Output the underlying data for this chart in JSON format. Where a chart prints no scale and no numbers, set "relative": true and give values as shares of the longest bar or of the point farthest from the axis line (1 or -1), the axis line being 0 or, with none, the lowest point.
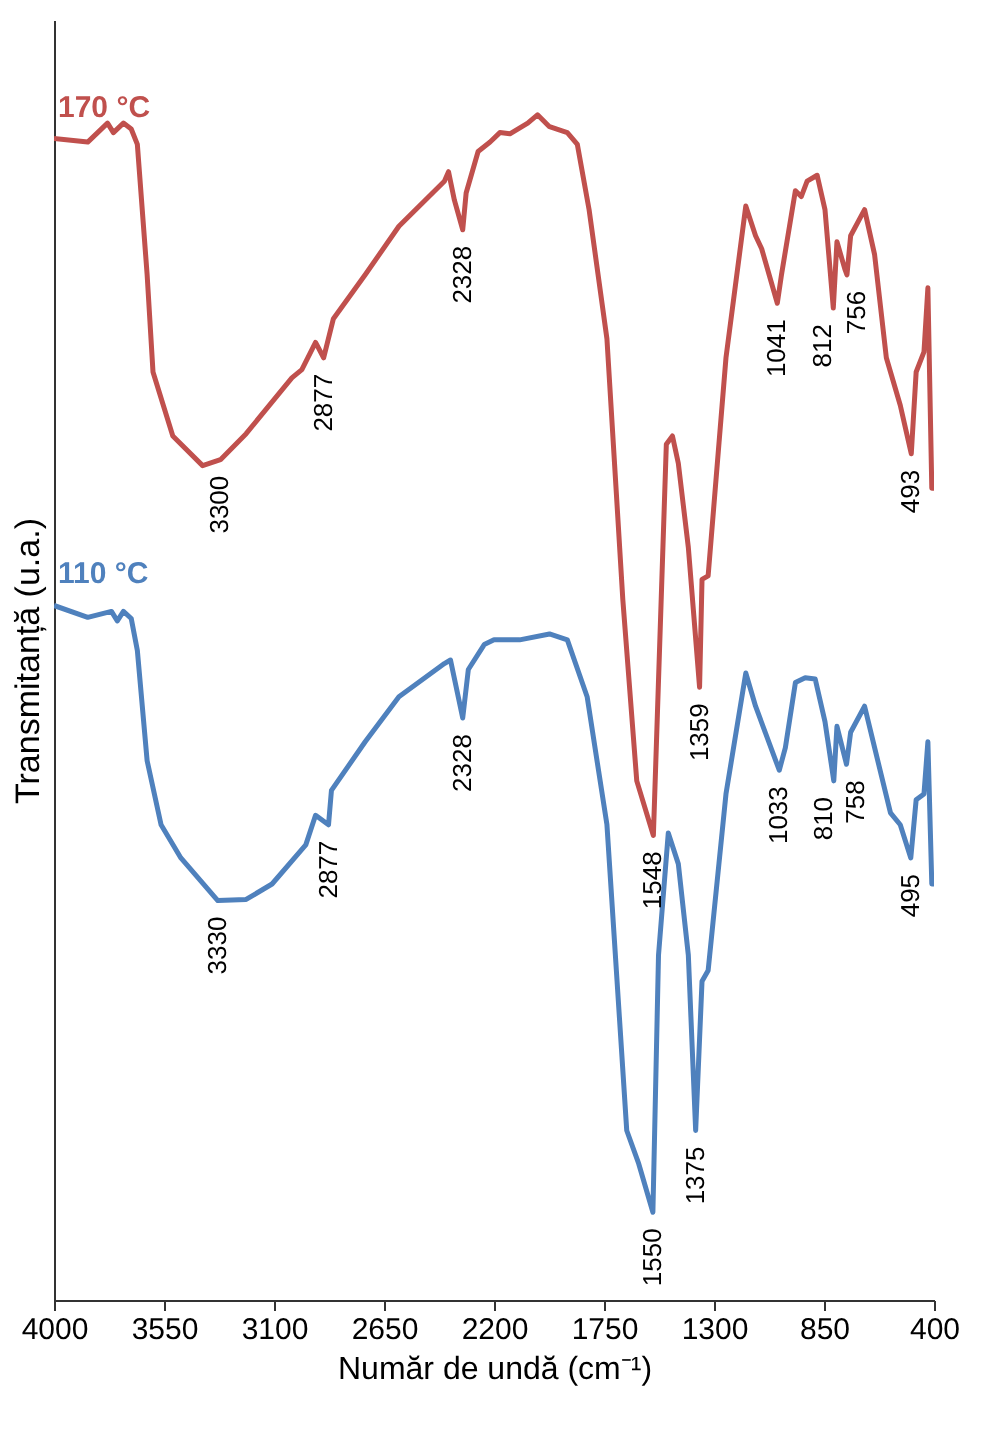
{
  "chart_data": {
    "type": "line",
    "relative": true,
    "xlabel": "Număr de undă (cm⁻¹)",
    "ylabel": "Transmitanță (u.a.)",
    "xlim": [
      4000,
      400
    ],
    "xticks": [
      4000,
      3550,
      3100,
      2650,
      2200,
      1750,
      1300,
      850,
      400
    ],
    "tick_labels": "x",
    "grid": false,
    "legend": false,
    "series": [
      {
        "name": "170 °C",
        "color": "#c0504d",
        "x": [
          4000,
          3862,
          3781,
          3757,
          3716,
          3684,
          3659,
          3619,
          3595,
          3514,
          3392,
          3319,
          3214,
          3027,
          2986,
          2930,
          2897,
          2857,
          2727,
          2589,
          2403,
          2386,
          2362,
          2328,
          2314,
          2265,
          2216,
          2176,
          2135,
          2062,
          2022,
          1973,
          1900,
          1859,
          1811,
          1738,
          1673,
          1616,
          1548,
          1495,
          1470,
          1446,
          1405,
          1359,
          1349,
          1324,
          1251,
          1170,
          1130,
          1105,
          1041,
          1024,
          967,
          943,
          919,
          878,
          846,
          812,
          797,
          765,
          756,
          741,
          684,
          643,
          595,
          538,
          493,
          473,
          441,
          425,
          409,
          400
        ],
        "values": [
          0.98,
          0.977,
          0.993,
          0.985,
          0.993,
          0.988,
          0.975,
          0.865,
          0.783,
          0.729,
          0.704,
          0.709,
          0.731,
          0.778,
          0.785,
          0.808,
          0.795,
          0.828,
          0.865,
          0.906,
          0.944,
          0.952,
          0.928,
          0.903,
          0.934,
          0.969,
          0.977,
          0.985,
          0.984,
          0.993,
          1.0,
          0.99,
          0.985,
          0.975,
          0.92,
          0.811,
          0.591,
          0.438,
          0.392,
          0.722,
          0.729,
          0.706,
          0.635,
          0.517,
          0.608,
          0.611,
          0.795,
          0.923,
          0.898,
          0.887,
          0.841,
          0.865,
          0.936,
          0.931,
          0.944,
          0.949,
          0.92,
          0.837,
          0.893,
          0.87,
          0.865,
          0.898,
          0.92,
          0.882,
          0.795,
          0.755,
          0.714,
          0.783,
          0.8,
          0.854,
          0.685,
          0.685
        ]
      },
      {
        "name": "110 °C",
        "color": "#4f81bd",
        "x": [
          4000,
          3862,
          3765,
          3741,
          3716,
          3684,
          3659,
          3619,
          3562,
          3481,
          3330,
          3214,
          3108,
          2970,
          2930,
          2877,
          2865,
          2727,
          2589,
          2403,
          2378,
          2328,
          2305,
          2240,
          2200,
          2095,
          1973,
          1900,
          1819,
          1738,
          1657,
          1608,
          1550,
          1527,
          1487,
          1446,
          1405,
          1375,
          1349,
          1324,
          1251,
          1170,
          1130,
          1033,
          1008,
          967,
          927,
          886,
          846,
          810,
          797,
          758,
          741,
          684,
          643,
          578,
          538,
          495,
          473,
          441,
          425,
          409,
          400
        ],
        "values": [
          0.586,
          0.576,
          0.581,
          0.573,
          0.581,
          0.575,
          0.548,
          0.455,
          0.401,
          0.373,
          0.337,
          0.338,
          0.351,
          0.384,
          0.409,
          0.401,
          0.43,
          0.471,
          0.509,
          0.537,
          0.54,
          0.491,
          0.532,
          0.553,
          0.557,
          0.557,
          0.562,
          0.557,
          0.509,
          0.401,
          0.143,
          0.115,
          0.074,
          0.291,
          0.394,
          0.368,
          0.291,
          0.143,
          0.269,
          0.278,
          0.427,
          0.529,
          0.501,
          0.447,
          0.466,
          0.521,
          0.525,
          0.524,
          0.488,
          0.438,
          0.484,
          0.452,
          0.479,
          0.501,
          0.466,
          0.411,
          0.401,
          0.373,
          0.422,
          0.427,
          0.471,
          0.351,
          0.351
        ]
      }
    ],
    "annotations": [
      {
        "text": "3300",
        "x": 3319,
        "y": 0.709
      },
      {
        "text": "2877",
        "x": 2897,
        "y": 0.795
      },
      {
        "text": "2328",
        "x": 2328,
        "y": 0.903
      },
      {
        "text": "1548",
        "x": 1548,
        "y": 0.392
      },
      {
        "text": "1359",
        "x": 1359,
        "y": 0.517
      },
      {
        "text": "1041",
        "x": 1041,
        "y": 0.841
      },
      {
        "text": "812",
        "x": 812,
        "y": 0.837
      },
      {
        "text": "756",
        "x": 756,
        "y": 0.865
      },
      {
        "text": "493",
        "x": 493,
        "y": 0.714
      },
      {
        "text": "3330",
        "x": 3330,
        "y": 0.337
      },
      {
        "text": "2877",
        "x": 2877,
        "y": 0.401
      },
      {
        "text": "2328",
        "x": 2328,
        "y": 0.491
      },
      {
        "text": "1550",
        "x": 1550,
        "y": 0.074
      },
      {
        "text": "1375",
        "x": 1375,
        "y": 0.143
      },
      {
        "text": "1033",
        "x": 1033,
        "y": 0.447
      },
      {
        "text": "810",
        "x": 810,
        "y": 0.438
      },
      {
        "text": "758",
        "x": 758,
        "y": 0.452
      },
      {
        "text": "495",
        "x": 495,
        "y": 0.373
      }
    ]
  }
}
